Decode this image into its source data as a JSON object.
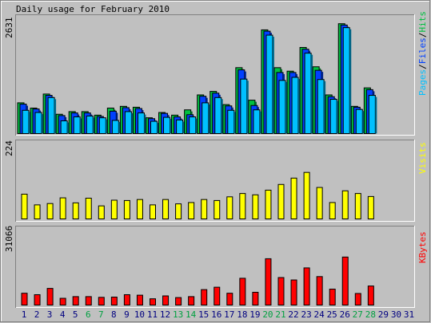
{
  "title": "Daily usage for February 2010",
  "colors": {
    "background": "#c0c0c0",
    "hits": "#00c040",
    "files": "#0040ff",
    "pages": "#00c0ff",
    "visits": "#ffff00",
    "kbytes": "#ff0000",
    "weekend_day": "#00a040",
    "weekday": "#000080"
  },
  "legend": {
    "pages": "Pages",
    "sep1": "/",
    "files": "Files",
    "sep2": "/",
    "hits": "Hits",
    "visits": "Visits",
    "kbytes": "KBytes"
  },
  "chart_data": [
    {
      "type": "bar",
      "name": "hits-files-pages",
      "ylabel": "2631",
      "ylim": [
        0,
        2631
      ],
      "categories": [
        "1",
        "2",
        "3",
        "4",
        "5",
        "6",
        "7",
        "8",
        "9",
        "10",
        "11",
        "12",
        "13",
        "14",
        "15",
        "16",
        "17",
        "18",
        "19",
        "20",
        "21",
        "22",
        "23",
        "24",
        "25",
        "26",
        "27",
        "28",
        "29",
        "30",
        "31"
      ],
      "series": [
        {
          "name": "Hits",
          "values": [
            700,
            580,
            900,
            440,
            500,
            500,
            420,
            580,
            620,
            600,
            360,
            480,
            420,
            540,
            880,
            960,
            660,
            1500,
            760,
            2360,
            1500,
            1420,
            1960,
            1520,
            880,
            2500,
            620,
            1040,
            0,
            0,
            0
          ]
        },
        {
          "name": "Files",
          "values": [
            670,
            560,
            870,
            410,
            470,
            470,
            390,
            510,
            590,
            570,
            340,
            460,
            380,
            430,
            850,
            920,
            630,
            1450,
            640,
            2330,
            1390,
            1390,
            1920,
            1440,
            840,
            2470,
            600,
            1000,
            0,
            0,
            0
          ]
        },
        {
          "name": "Pages",
          "values": [
            530,
            480,
            820,
            290,
            380,
            400,
            360,
            300,
            500,
            470,
            280,
            370,
            310,
            380,
            700,
            820,
            530,
            1240,
            540,
            2240,
            1210,
            1280,
            1830,
            1230,
            780,
            2410,
            550,
            870,
            0,
            0,
            0
          ]
        }
      ],
      "weekend_days": [
        "6",
        "7",
        "13",
        "14",
        "20",
        "21",
        "27",
        "28"
      ]
    },
    {
      "type": "bar",
      "name": "visits",
      "ylabel": "224",
      "ylim": [
        0,
        224
      ],
      "categories": [
        "1",
        "2",
        "3",
        "4",
        "5",
        "6",
        "7",
        "8",
        "9",
        "10",
        "11",
        "12",
        "13",
        "14",
        "15",
        "16",
        "17",
        "18",
        "19",
        "20",
        "21",
        "22",
        "23",
        "24",
        "25",
        "26",
        "27",
        "28",
        "29",
        "30",
        "31"
      ],
      "series": [
        {
          "name": "Visits",
          "values": [
            74,
            42,
            46,
            63,
            48,
            62,
            39,
            56,
            55,
            58,
            42,
            58,
            45,
            49,
            58,
            55,
            66,
            76,
            72,
            86,
            103,
            122,
            139,
            94,
            49,
            84,
            76,
            67,
            0,
            0,
            0
          ]
        }
      ]
    },
    {
      "type": "bar",
      "name": "kbytes",
      "ylabel": "31066",
      "ylim": [
        0,
        31066
      ],
      "categories": [
        "1",
        "2",
        "3",
        "4",
        "5",
        "6",
        "7",
        "8",
        "9",
        "10",
        "11",
        "12",
        "13",
        "14",
        "15",
        "16",
        "17",
        "18",
        "19",
        "20",
        "21",
        "22",
        "23",
        "24",
        "25",
        "26",
        "27",
        "28",
        "29",
        "30",
        "31"
      ],
      "series": [
        {
          "name": "KBytes",
          "values": [
            4900,
            4300,
            6900,
            2800,
            3500,
            3500,
            3200,
            3300,
            4300,
            4100,
            2600,
            3800,
            3100,
            3500,
            6400,
            7400,
            4900,
            11100,
            5300,
            19200,
            11400,
            10400,
            15400,
            11800,
            6600,
            19900,
            4800,
            7900,
            0,
            0,
            0
          ]
        }
      ]
    }
  ]
}
